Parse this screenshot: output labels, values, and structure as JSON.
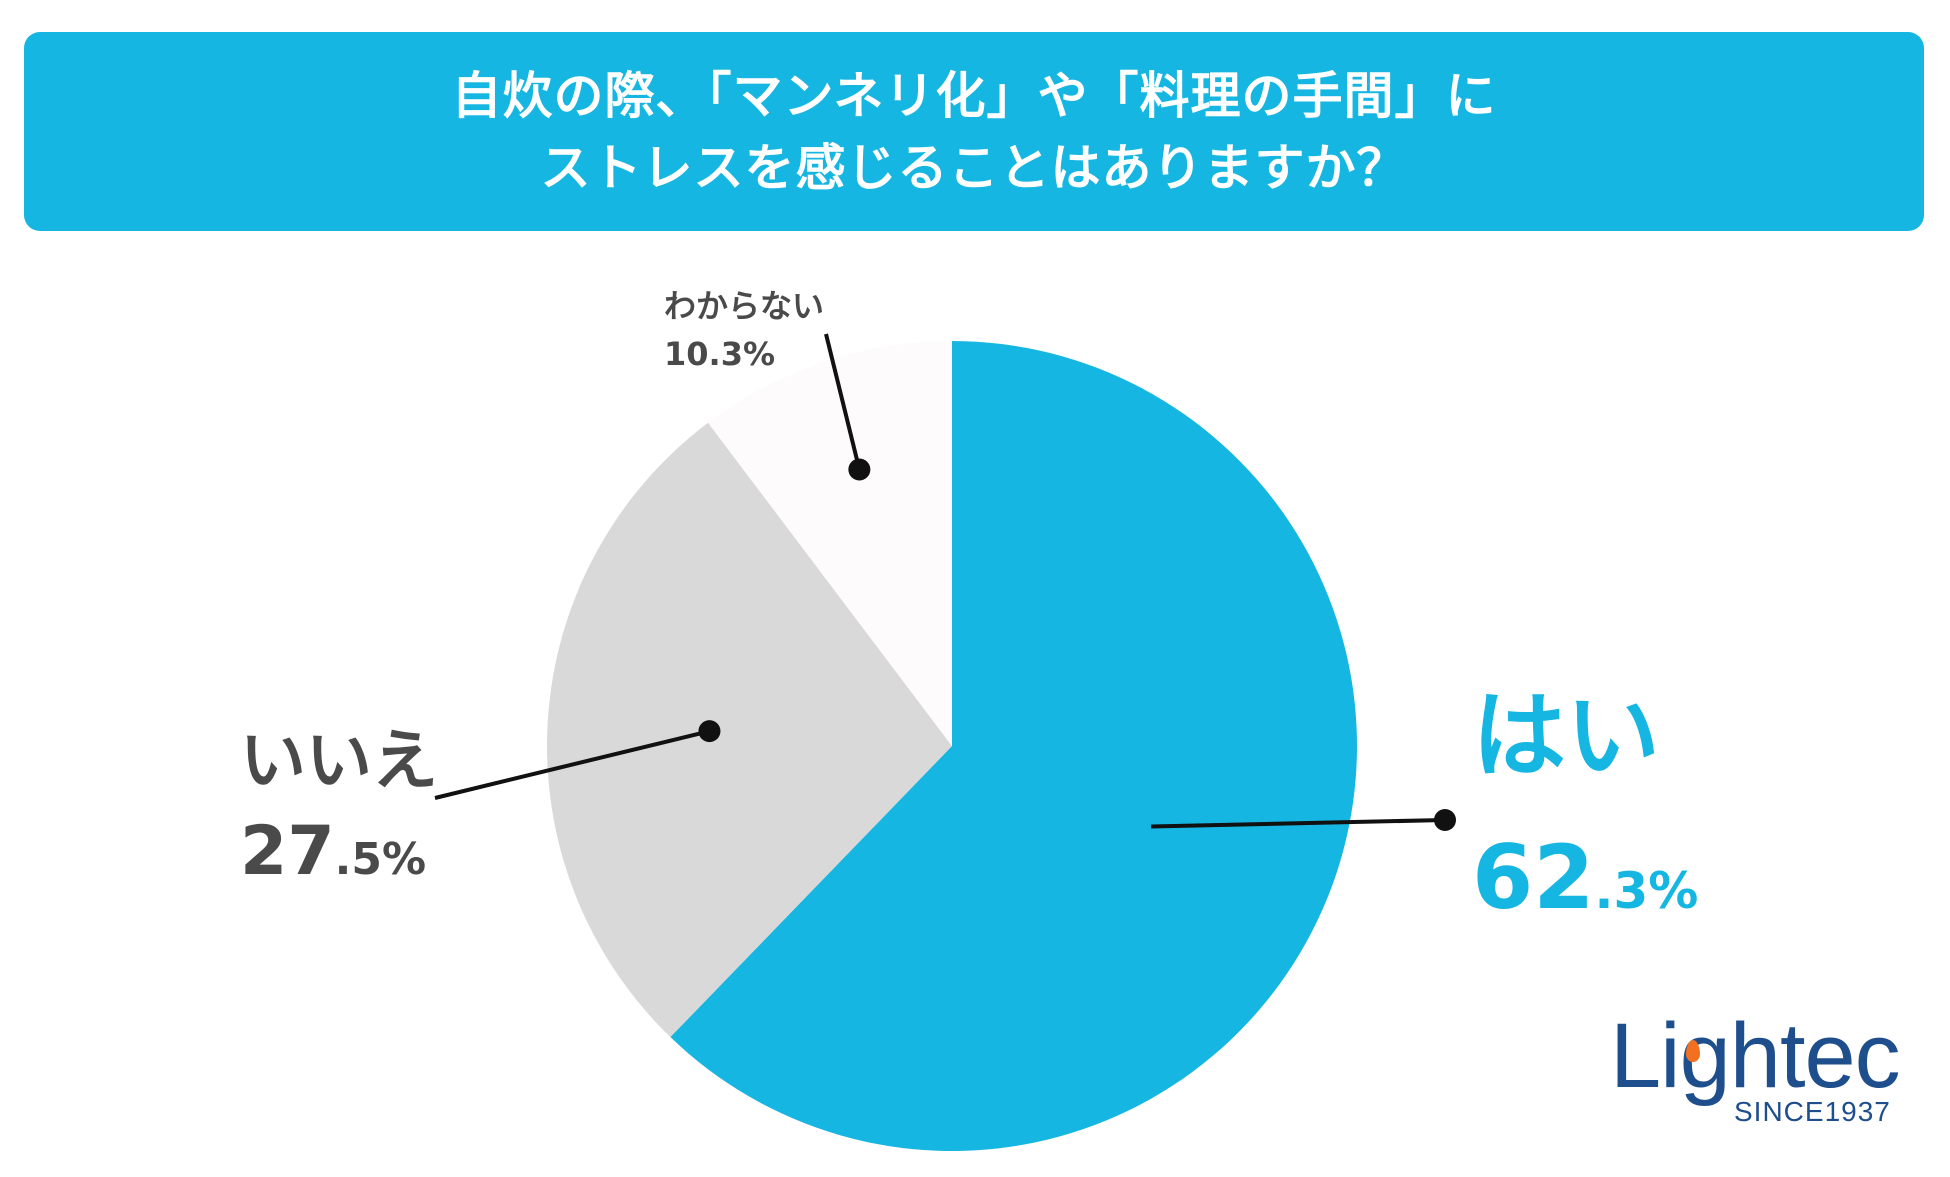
{
  "title": {
    "line1": "自炊の際、「マンネリ化」や「料理の手間」に",
    "line2": "ストレスを感じることはありますか？"
  },
  "chart_data": {
    "type": "pie",
    "slices": [
      {
        "label": "はい",
        "value": 62.3,
        "value_int": "62",
        "value_dec": ".3%",
        "color": "#16b6e2"
      },
      {
        "label": "いいえ",
        "value": 27.5,
        "value_int": "27",
        "value_dec": ".5%",
        "color": "#d9d9d9"
      },
      {
        "label": "わからない",
        "value": 10.3,
        "value_text": "10.3%",
        "color": "#fdfbfc"
      }
    ],
    "start": "12 o'clock",
    "direction": "clockwise",
    "legend": "none"
  },
  "logo": {
    "name": "Lightec",
    "tagline": "SINCE1937",
    "colors": {
      "text": "#1f4e8c",
      "flame": "#f37021"
    }
  }
}
